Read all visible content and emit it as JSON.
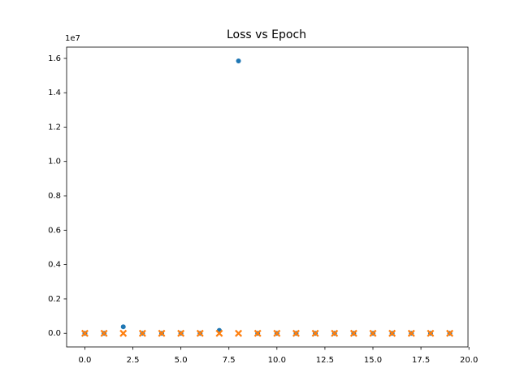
{
  "chart_data": {
    "type": "scatter",
    "title": "Loss vs Epoch",
    "y_offset_label": "1e7",
    "x": [
      0,
      1,
      2,
      3,
      4,
      5,
      6,
      7,
      8,
      9,
      10,
      11,
      12,
      13,
      14,
      15,
      16,
      17,
      18,
      19
    ],
    "series": [
      {
        "color": "#1f77b4",
        "marker": "dot",
        "values": [
          0,
          0,
          380000,
          0,
          0,
          0,
          0,
          170000,
          15850000,
          0,
          0,
          0,
          0,
          0,
          0,
          0,
          0,
          0,
          0,
          0
        ]
      },
      {
        "color": "#ff7f0e",
        "marker": "x",
        "values": [
          0,
          0,
          0,
          0,
          0,
          0,
          0,
          0,
          0,
          0,
          0,
          0,
          0,
          0,
          0,
          0,
          0,
          0,
          0,
          0
        ]
      }
    ],
    "xlim": [
      -0.95,
      19.95
    ],
    "xticks": [
      {
        "value": 0,
        "label": "0.0"
      },
      2.5,
      {
        "value": 5,
        "label": "5.0"
      },
      7.5,
      {
        "value": 10,
        "label": "10.0"
      },
      12.5,
      {
        "value": 15,
        "label": "15.0"
      },
      17.5,
      {
        "value": 20,
        "label": "20.0"
      }
    ],
    "ylim": [
      -793000,
      16653000
    ],
    "yticks": [
      {
        "value": 0,
        "label": "0.0"
      },
      {
        "value": 2000000,
        "label": "0.2"
      },
      {
        "value": 4000000,
        "label": "0.4"
      },
      {
        "value": 6000000,
        "label": "0.6"
      },
      {
        "value": 8000000,
        "label": "0.8"
      },
      {
        "value": 10000000,
        "label": "1.0"
      },
      {
        "value": 12000000,
        "label": "1.2"
      },
      {
        "value": 14000000,
        "label": "1.4"
      },
      {
        "value": 16000000,
        "label": "1.6"
      }
    ],
    "grid": false
  }
}
